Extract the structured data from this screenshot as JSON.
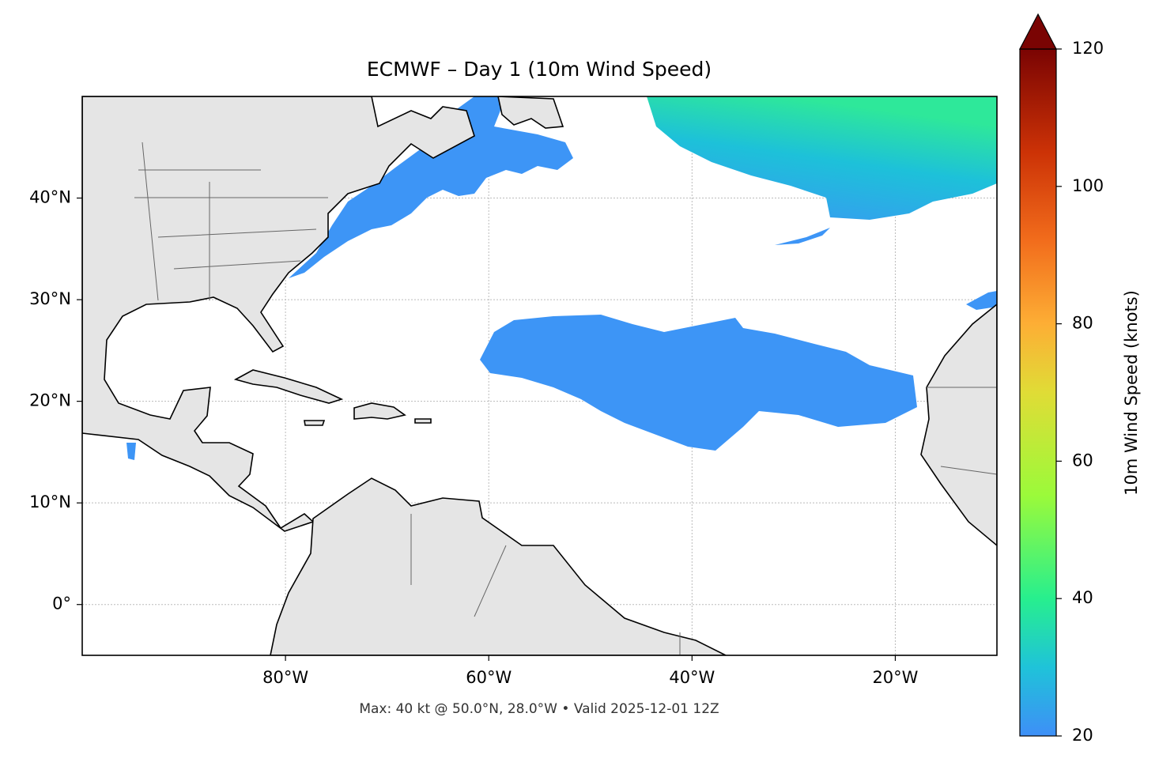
{
  "title": "ECMWF – Day 1 (10m Wind Speed)",
  "xlim": [
    -100,
    -10
  ],
  "ylim": [
    -5,
    50
  ],
  "xticks": [
    {
      "value": -80,
      "label": "80°W"
    },
    {
      "value": -60,
      "label": "60°W"
    },
    {
      "value": -40,
      "label": "40°W"
    },
    {
      "value": -20,
      "label": "20°W"
    }
  ],
  "yticks": [
    {
      "value": 0,
      "label": "0°"
    },
    {
      "value": 10,
      "label": "10°N"
    },
    {
      "value": 20,
      "label": "20°N"
    },
    {
      "value": 30,
      "label": "30°N"
    },
    {
      "value": 40,
      "label": "40°N"
    }
  ],
  "footer": "Max: 40 kt @ 50.0°N, 28.0°W • Valid 2025-12-01 12Z",
  "colorbar": {
    "label": "10m Wind Speed (knots)",
    "lim": [
      20,
      120
    ],
    "ticks": [
      20,
      40,
      60,
      80,
      100,
      120
    ]
  }
}
